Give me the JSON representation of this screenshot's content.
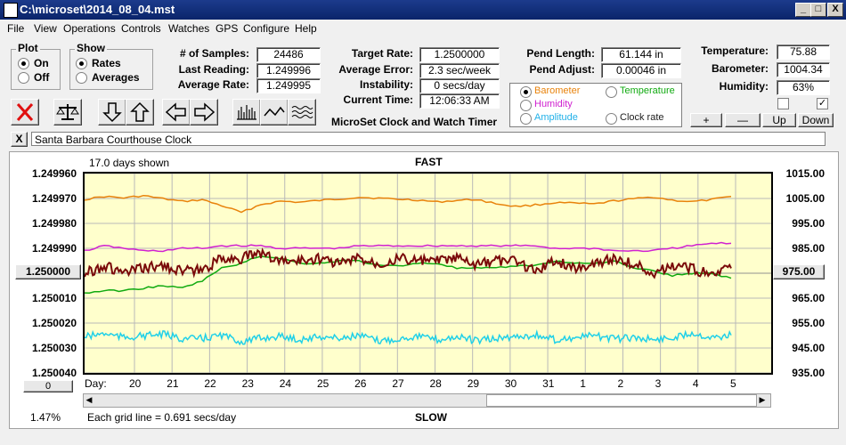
{
  "window": {
    "title": "C:\\microset\\2014_08_04.mst",
    "min_label": "_",
    "max_label": "□",
    "close_label": "X"
  },
  "menu": [
    "File",
    "View",
    "Operations",
    "Controls",
    "Watches",
    "GPS",
    "Configure",
    "Help"
  ],
  "plot_group": {
    "title": "Plot",
    "on": "On",
    "off": "Off"
  },
  "show_group": {
    "title": "Show",
    "rates": "Rates",
    "averages": "Averages"
  },
  "stats": {
    "samples_label": "# of Samples:",
    "samples": "24486",
    "last_label": "Last Reading:",
    "last": "1.249996",
    "avg_label": "Average Rate:",
    "avg": "1.249995",
    "target_label": "Target Rate:",
    "target": "1.2500000",
    "avgerr_label": "Average Error:",
    "avgerr": "2.3 sec/week",
    "instab_label": "Instability:",
    "instab": "0 secs/day",
    "time_label": "Current Time:",
    "time": "12:06:33 AM",
    "pendlen_label": "Pend Length:",
    "pendlen": "61.144 in",
    "pendadj_label": "Pend Adjust:",
    "pendadj": "0.00046 in",
    "temp_label": "Temperature:",
    "temp": "75.88",
    "baro_label": "Barometer:",
    "baro": "1004.34",
    "hum_label": "Humidity:",
    "hum": "63%"
  },
  "app_name": "MicroSet Clock and Watch Timer",
  "series_select": {
    "barometer": "Barometer",
    "temperature": "Temperature",
    "humidity": "Humidity",
    "amplitude": "Amplitude",
    "clockrate": "Clock rate"
  },
  "colors": {
    "barometer": "#e8820a",
    "temperature": "#10aa10",
    "humidity": "#d020d0",
    "amplitude": "#20d0e8",
    "rate": "#7a0a0a"
  },
  "small_buttons": {
    "plus": "+",
    "minus": "—",
    "up": "Up",
    "down": "Down"
  },
  "watch_name": "Santa Barbara Courthouse Clock",
  "close_x": "X",
  "chart": {
    "days_shown": "17.0 days shown",
    "fast": "FAST",
    "slow": "SLOW",
    "grid_note": "Each grid line = 0.691 secs/day",
    "percent": "1.47%",
    "left_button": "1.250000",
    "right_button": "975.00",
    "zero_button": "0",
    "day_label": "Day:"
  },
  "chart_data": {
    "type": "line",
    "left_ticks": [
      "1.249960",
      "1.249970",
      "1.249980",
      "1.249990",
      "1.250000",
      "1.250010",
      "1.250020",
      "1.250030",
      "1.250040"
    ],
    "right_ticks": [
      "1015.00",
      "1005.00",
      "995.00",
      "985.00",
      "975.00",
      "965.00",
      "955.00",
      "945.00",
      "935.00"
    ],
    "x_ticks": [
      "20",
      "21",
      "22",
      "23",
      "24",
      "25",
      "26",
      "27",
      "28",
      "29",
      "30",
      "31",
      "1",
      "2",
      "3",
      "4",
      "5"
    ],
    "ylim_left": [
      1.24996,
      1.25004
    ],
    "ylim_right": [
      935,
      1015
    ],
    "series": [
      {
        "key": "barometer",
        "values": [
          1004.6,
          1005.8,
          1005.2,
          1006.1,
          1004.9,
          1003.8,
          1004.5,
          1002.1,
          999.4,
          1002.6,
          1003.9,
          1003.5,
          1004.2,
          1004.8,
          1005.5,
          1005.1,
          1004.7,
          1004.4,
          1003.6,
          1004.2,
          1004.6,
          1002.9,
          1001.8,
          1002.4,
          1003.3,
          1003.1,
          1002.7,
          1004.0,
          1004.8,
          1005.6,
          1004.3,
          1003.7,
          1004.5,
          1005.8
        ]
      },
      {
        "key": "humidity",
        "values": [
          1.249991,
          1.249989,
          1.24999,
          1.249991,
          1.249991,
          1.24999,
          1.24999,
          1.249989,
          1.249989,
          1.249989,
          1.24999,
          1.24999,
          1.24999,
          1.24999,
          1.249989,
          1.249989,
          1.249989,
          1.249989,
          1.249989,
          1.249989,
          1.249989,
          1.249989,
          1.249989,
          1.249989,
          1.24999,
          1.24999,
          1.24999,
          1.249991,
          1.249991,
          1.249991,
          1.24999,
          1.249989,
          1.249988,
          1.249988
        ]
      },
      {
        "key": "temperature",
        "values": [
          1.250008,
          1.250007,
          1.250007,
          1.250006,
          1.250005,
          1.250006,
          1.250003,
          1.249998,
          1.249996,
          1.249993,
          1.249994,
          1.249996,
          1.249996,
          1.249995,
          1.249995,
          1.249997,
          1.249997,
          1.249996,
          1.249996,
          1.249998,
          1.249998,
          1.249998,
          1.249997,
          1.249997,
          1.249995,
          1.249996,
          1.249996,
          1.249995,
          1.249998,
          1.249999,
          1.250001,
          1.25,
          1.25,
          1.250002
        ]
      },
      {
        "key": "amplitude",
        "values": [
          949.5,
          950.8,
          949.2,
          949.9,
          950.5,
          948.7,
          948.8,
          950.1,
          947.5,
          948.9,
          949.7,
          948.3,
          949.6,
          948.9,
          950.0,
          947.8,
          948.6,
          949.9,
          948.2,
          949.5,
          947.9,
          948.7,
          949.6,
          950.2,
          948.3,
          949.1,
          950.0,
          948.6,
          949.2,
          948.4,
          949.0,
          951.2,
          949.3,
          950.1
        ]
      },
      {
        "key": "rate",
        "values": [
          1.25,
          1.249997,
          1.25,
          1.249998,
          1.249997,
          1.249999,
          1.249999,
          1.249994,
          1.249994,
          1.249992,
          1.249995,
          1.249995,
          1.249994,
          1.249996,
          1.249994,
          1.249996,
          1.249994,
          1.249995,
          1.249995,
          1.249994,
          1.249997,
          1.249995,
          1.249995,
          1.249999,
          1.249995,
          1.249998,
          1.249996,
          1.249994,
          1.249996,
          1.25,
          1.249997,
          1.249998,
          1.250001,
          1.249998
        ]
      }
    ]
  }
}
